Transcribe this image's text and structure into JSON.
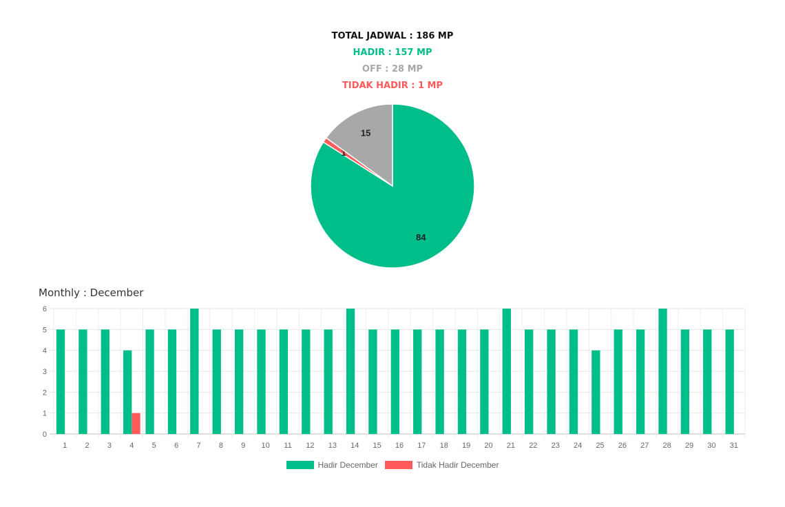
{
  "summary": {
    "total": "TOTAL JADWAL : 186 MP",
    "hadir": "HADIR : 157 MP",
    "off": "OFF : 28 MP",
    "tidak_hadir": "TIDAK HADIR : 1 MP"
  },
  "colors": {
    "hadir": "#00be8a",
    "off": "#a8a8a8",
    "tidak_hadir": "#ff5a5a"
  },
  "chart_data": [
    {
      "type": "pie",
      "slices": [
        {
          "value": 84,
          "label": "84",
          "color": "#00be8a"
        },
        {
          "value": 1,
          "label": "1",
          "color": "#ff5a5a"
        },
        {
          "value": 15,
          "label": "15",
          "color": "#a8a8a8"
        }
      ]
    },
    {
      "type": "bar",
      "title": "Monthly : December",
      "categories": [
        "1",
        "2",
        "3",
        "4",
        "5",
        "6",
        "7",
        "8",
        "9",
        "10",
        "11",
        "12",
        "13",
        "14",
        "15",
        "16",
        "17",
        "18",
        "19",
        "20",
        "21",
        "22",
        "23",
        "24",
        "25",
        "26",
        "27",
        "28",
        "29",
        "30",
        "31"
      ],
      "series": [
        {
          "name": "Hadir December",
          "color": "#00be8a",
          "values": [
            5,
            5,
            5,
            4,
            5,
            5,
            6,
            5,
            5,
            5,
            5,
            5,
            5,
            6,
            5,
            5,
            5,
            5,
            5,
            5,
            6,
            5,
            5,
            5,
            4,
            5,
            5,
            6,
            5,
            5,
            5
          ]
        },
        {
          "name": "Tidak Hadir December",
          "color": "#ff5a5a",
          "values": [
            0,
            0,
            0,
            1,
            0,
            0,
            0,
            0,
            0,
            0,
            0,
            0,
            0,
            0,
            0,
            0,
            0,
            0,
            0,
            0,
            0,
            0,
            0,
            0,
            0,
            0,
            0,
            0,
            0,
            0,
            0
          ]
        }
      ],
      "ylim": [
        0,
        6
      ],
      "yticks": [
        0,
        1,
        2,
        3,
        4,
        5,
        6
      ],
      "grid": true,
      "legend": "bottom"
    }
  ]
}
